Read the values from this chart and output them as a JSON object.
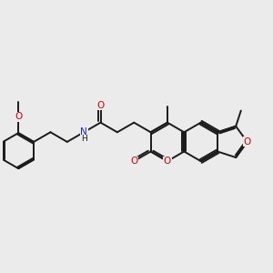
{
  "background_color": "#ebebeb",
  "bond_color": "#1a1a1a",
  "oxygen_color": "#cc0000",
  "nitrogen_color": "#2222cc",
  "bond_width": 1.4,
  "figsize": [
    3.0,
    3.0
  ],
  "dpi": 100,
  "xlim": [
    0,
    10
  ],
  "ylim": [
    2,
    8
  ]
}
